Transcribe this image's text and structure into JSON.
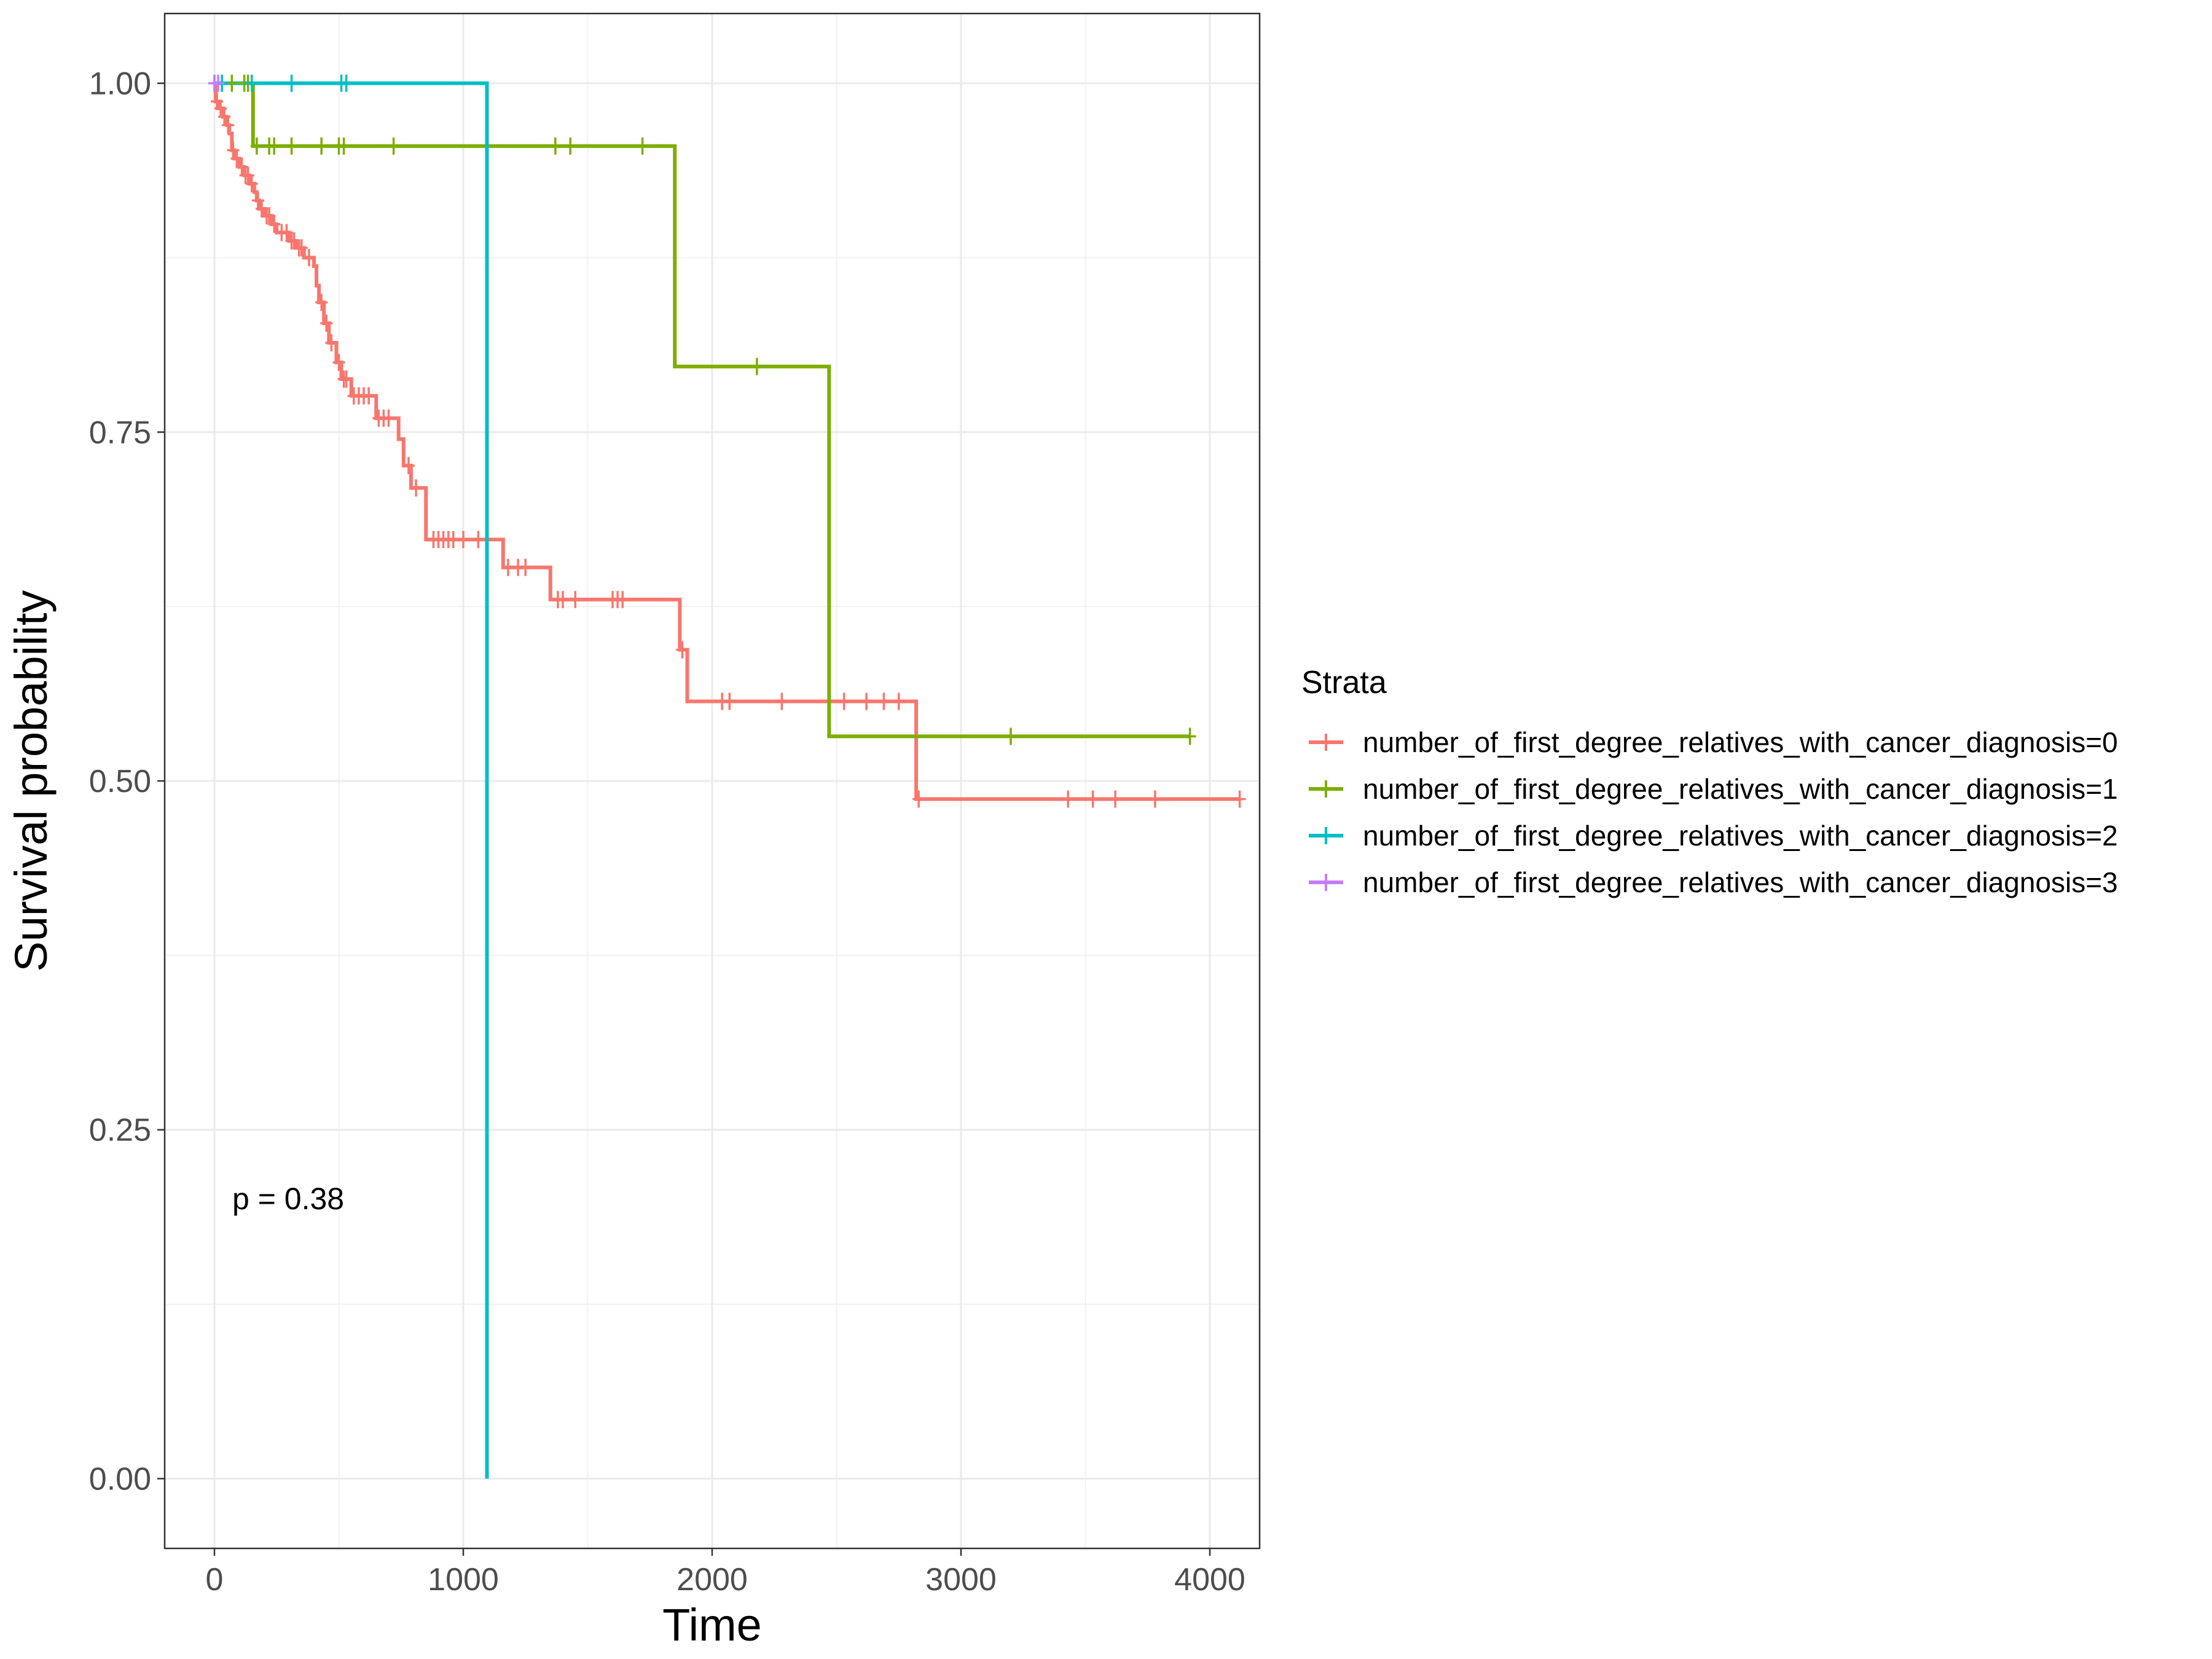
{
  "chart_data": {
    "type": "line",
    "subtype": "kaplan-meier",
    "xlabel": "Time",
    "ylabel": "Survival probability",
    "xlim": [
      -200,
      4200
    ],
    "ylim": [
      -0.05,
      1.05
    ],
    "x_ticks": [
      0,
      1000,
      2000,
      3000,
      4000
    ],
    "x_tick_labels": [
      "0",
      "1000",
      "2000",
      "3000",
      "4000"
    ],
    "y_ticks": [
      0,
      0.25,
      0.5,
      0.75,
      1
    ],
    "y_tick_labels": [
      "0.00",
      "0.25",
      "0.50",
      "0.75",
      "1.00"
    ],
    "grid": true,
    "legend_title": "Strata",
    "legend_position": "right",
    "annotation": "p = 0.38",
    "series": [
      {
        "name": "number_of_first_degree_relatives_with_cancer_diagnosis=0",
        "color": "#F8766D",
        "steps": [
          [
            0,
            1
          ],
          [
            5,
            0.987
          ],
          [
            20,
            0.982
          ],
          [
            35,
            0.976
          ],
          [
            50,
            0.97
          ],
          [
            60,
            0.964
          ],
          [
            70,
            0.952
          ],
          [
            80,
            0.946
          ],
          [
            100,
            0.94
          ],
          [
            120,
            0.934
          ],
          [
            140,
            0.928
          ],
          [
            160,
            0.922
          ],
          [
            170,
            0.916
          ],
          [
            180,
            0.91
          ],
          [
            200,
            0.905
          ],
          [
            230,
            0.899
          ],
          [
            250,
            0.893
          ],
          [
            300,
            0.887
          ],
          [
            330,
            0.882
          ],
          [
            360,
            0.875
          ],
          [
            400,
            0.869
          ],
          [
            410,
            0.855
          ],
          [
            420,
            0.843
          ],
          [
            440,
            0.828
          ],
          [
            460,
            0.814
          ],
          [
            490,
            0.8
          ],
          [
            510,
            0.788
          ],
          [
            550,
            0.776
          ],
          [
            650,
            0.76
          ],
          [
            740,
            0.745
          ],
          [
            760,
            0.726
          ],
          [
            790,
            0.71
          ],
          [
            850,
            0.673
          ],
          [
            1160,
            0.653
          ],
          [
            1350,
            0.63
          ],
          [
            1870,
            0.594
          ],
          [
            1900,
            0.557
          ],
          [
            2820,
            0.487
          ],
          [
            4120,
            0.487
          ]
        ],
        "censored": [
          [
            10,
            0.987
          ],
          [
            25,
            0.982
          ],
          [
            40,
            0.976
          ],
          [
            55,
            0.97
          ],
          [
            75,
            0.952
          ],
          [
            90,
            0.946
          ],
          [
            110,
            0.94
          ],
          [
            125,
            0.934
          ],
          [
            135,
            0.934
          ],
          [
            150,
            0.928
          ],
          [
            175,
            0.916
          ],
          [
            190,
            0.91
          ],
          [
            210,
            0.905
          ],
          [
            220,
            0.905
          ],
          [
            240,
            0.899
          ],
          [
            270,
            0.893
          ],
          [
            290,
            0.893
          ],
          [
            310,
            0.887
          ],
          [
            320,
            0.887
          ],
          [
            340,
            0.882
          ],
          [
            350,
            0.882
          ],
          [
            380,
            0.875
          ],
          [
            430,
            0.843
          ],
          [
            450,
            0.828
          ],
          [
            470,
            0.814
          ],
          [
            500,
            0.8
          ],
          [
            520,
            0.788
          ],
          [
            530,
            0.788
          ],
          [
            560,
            0.776
          ],
          [
            580,
            0.776
          ],
          [
            600,
            0.776
          ],
          [
            620,
            0.776
          ],
          [
            660,
            0.76
          ],
          [
            680,
            0.76
          ],
          [
            700,
            0.76
          ],
          [
            780,
            0.726
          ],
          [
            810,
            0.71
          ],
          [
            880,
            0.673
          ],
          [
            900,
            0.673
          ],
          [
            920,
            0.673
          ],
          [
            940,
            0.673
          ],
          [
            960,
            0.673
          ],
          [
            1000,
            0.673
          ],
          [
            1060,
            0.673
          ],
          [
            1180,
            0.653
          ],
          [
            1220,
            0.653
          ],
          [
            1250,
            0.653
          ],
          [
            1380,
            0.63
          ],
          [
            1400,
            0.63
          ],
          [
            1450,
            0.63
          ],
          [
            1600,
            0.63
          ],
          [
            1620,
            0.63
          ],
          [
            1640,
            0.63
          ],
          [
            1880,
            0.594
          ],
          [
            2040,
            0.557
          ],
          [
            2070,
            0.557
          ],
          [
            2280,
            0.557
          ],
          [
            2530,
            0.557
          ],
          [
            2620,
            0.557
          ],
          [
            2690,
            0.557
          ],
          [
            2750,
            0.557
          ],
          [
            2830,
            0.487
          ],
          [
            3430,
            0.487
          ],
          [
            3530,
            0.487
          ],
          [
            3620,
            0.487
          ],
          [
            3780,
            0.487
          ],
          [
            4120,
            0.487
          ]
        ]
      },
      {
        "name": "number_of_first_degree_relatives_with_cancer_diagnosis=1",
        "color": "#7CAE00",
        "steps": [
          [
            0,
            1
          ],
          [
            155,
            0.955
          ],
          [
            1850,
            0.955
          ],
          [
            1850,
            0.797
          ],
          [
            2470,
            0.797
          ],
          [
            2470,
            0.532
          ],
          [
            3920,
            0.532
          ]
        ],
        "censored": [
          [
            70,
            1
          ],
          [
            120,
            1
          ],
          [
            135,
            1
          ],
          [
            150,
            1
          ],
          [
            170,
            0.955
          ],
          [
            220,
            0.955
          ],
          [
            240,
            0.955
          ],
          [
            310,
            0.955
          ],
          [
            430,
            0.955
          ],
          [
            500,
            0.955
          ],
          [
            520,
            0.955
          ],
          [
            720,
            0.955
          ],
          [
            1370,
            0.955
          ],
          [
            1430,
            0.955
          ],
          [
            1720,
            0.955
          ],
          [
            2180,
            0.797
          ],
          [
            3200,
            0.532
          ],
          [
            3920,
            0.532
          ]
        ]
      },
      {
        "name": "number_of_first_degree_relatives_with_cancer_diagnosis=2",
        "color": "#00BFC4",
        "steps": [
          [
            0,
            1
          ],
          [
            1095,
            1
          ],
          [
            1095,
            0
          ]
        ],
        "censored": [
          [
            0,
            1
          ],
          [
            30,
            1
          ],
          [
            150,
            1
          ],
          [
            310,
            1
          ],
          [
            510,
            1
          ],
          [
            530,
            1
          ]
        ]
      },
      {
        "name": "number_of_first_degree_relatives_with_cancer_diagnosis=3",
        "color": "#C77CFF",
        "steps": [
          [
            0,
            1
          ],
          [
            20,
            1
          ]
        ],
        "censored": [
          [
            0,
            1
          ],
          [
            15,
            1
          ]
        ]
      }
    ]
  }
}
